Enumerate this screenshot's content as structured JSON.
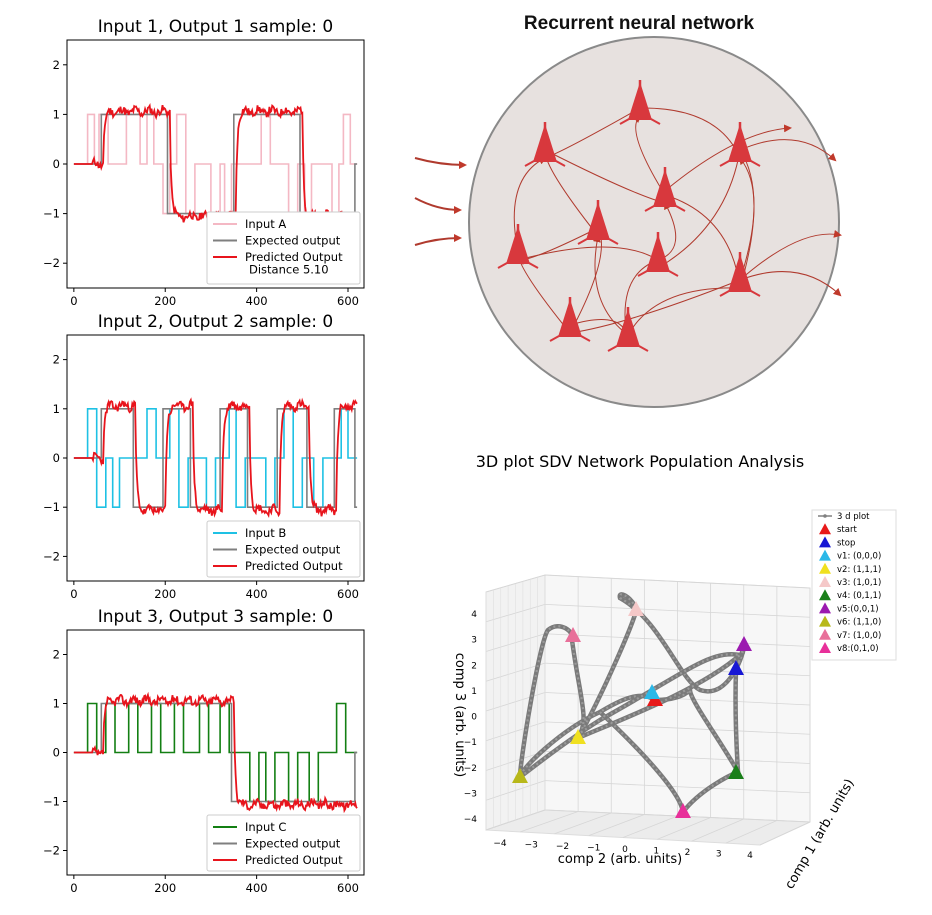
{
  "chart_data": [
    {
      "type": "line",
      "title": "Input 1, Output 1 sample: 0",
      "xlim": [
        -15,
        635
      ],
      "ylim": [
        -2.5,
        2.5
      ],
      "xticks": [
        0,
        200,
        400,
        600
      ],
      "yticks": [
        -2,
        -1,
        0,
        1,
        2
      ],
      "legend": "lower-right",
      "distance_label": "Distance 5.10",
      "input_levels": [
        [
          0,
          0
        ],
        [
          30,
          0
        ],
        [
          30,
          1
        ],
        [
          45,
          1
        ],
        [
          45,
          0
        ],
        [
          55,
          0
        ],
        [
          55,
          1
        ],
        [
          75,
          1
        ],
        [
          75,
          0
        ],
        [
          115,
          0
        ],
        [
          115,
          1
        ],
        [
          145,
          1
        ],
        [
          145,
          0
        ],
        [
          160,
          0
        ],
        [
          160,
          1
        ],
        [
          175,
          1
        ],
        [
          175,
          0
        ],
        [
          195,
          0
        ],
        [
          195,
          -1
        ],
        [
          210,
          -1
        ],
        [
          210,
          0
        ],
        [
          225,
          0
        ],
        [
          225,
          1
        ],
        [
          245,
          1
        ],
        [
          245,
          -1
        ],
        [
          265,
          -1
        ],
        [
          265,
          0
        ],
        [
          300,
          0
        ],
        [
          300,
          -1
        ],
        [
          320,
          -1
        ],
        [
          320,
          0
        ],
        [
          330,
          0
        ],
        [
          330,
          -1
        ],
        [
          345,
          -1
        ],
        [
          345,
          0
        ],
        [
          410,
          0
        ],
        [
          410,
          1
        ],
        [
          430,
          1
        ],
        [
          430,
          0
        ],
        [
          470,
          0
        ],
        [
          470,
          -1
        ],
        [
          490,
          -1
        ],
        [
          490,
          0
        ],
        [
          505,
          0
        ],
        [
          505,
          -1
        ],
        [
          520,
          -1
        ],
        [
          520,
          0
        ],
        [
          565,
          0
        ],
        [
          565,
          -1
        ],
        [
          580,
          -1
        ],
        [
          580,
          0
        ],
        [
          590,
          0
        ],
        [
          590,
          1
        ],
        [
          605,
          1
        ],
        [
          605,
          0
        ],
        [
          620,
          0
        ]
      ],
      "expected_levels": [
        [
          0,
          0
        ],
        [
          60,
          0
        ],
        [
          60,
          1
        ],
        [
          205,
          1
        ],
        [
          205,
          -1
        ],
        [
          350,
          -1
        ],
        [
          350,
          1
        ],
        [
          495,
          1
        ],
        [
          495,
          -1
        ],
        [
          615,
          -1
        ],
        [
          615,
          0
        ],
        [
          620,
          0
        ]
      ],
      "predicted_seed": 11,
      "series": [
        {
          "name": "Input A",
          "color": "#f4b8c4"
        },
        {
          "name": "Expected output",
          "color": "#7f7f7f"
        },
        {
          "name": "Predicted Output",
          "color": "#e8141c"
        }
      ]
    },
    {
      "type": "line",
      "title": "Input 2, Output 2 sample: 0",
      "xlim": [
        -15,
        635
      ],
      "ylim": [
        -2.5,
        2.5
      ],
      "xticks": [
        0,
        200,
        400,
        600
      ],
      "yticks": [
        -2,
        -1,
        0,
        1,
        2
      ],
      "legend": "lower-right",
      "input_levels": [
        [
          0,
          0
        ],
        [
          30,
          0
        ],
        [
          30,
          1
        ],
        [
          50,
          1
        ],
        [
          50,
          -1
        ],
        [
          70,
          -1
        ],
        [
          70,
          0
        ],
        [
          85,
          0
        ],
        [
          85,
          -1
        ],
        [
          100,
          -1
        ],
        [
          100,
          0
        ],
        [
          160,
          0
        ],
        [
          160,
          1
        ],
        [
          180,
          1
        ],
        [
          180,
          0
        ],
        [
          210,
          0
        ],
        [
          210,
          1
        ],
        [
          230,
          1
        ],
        [
          230,
          -1
        ],
        [
          250,
          -1
        ],
        [
          250,
          0
        ],
        [
          290,
          0
        ],
        [
          290,
          -1
        ],
        [
          310,
          -1
        ],
        [
          310,
          0
        ],
        [
          340,
          0
        ],
        [
          340,
          1
        ],
        [
          355,
          1
        ],
        [
          355,
          -1
        ],
        [
          375,
          -1
        ],
        [
          375,
          0
        ],
        [
          420,
          0
        ],
        [
          420,
          -1
        ],
        [
          440,
          -1
        ],
        [
          440,
          0
        ],
        [
          460,
          0
        ],
        [
          460,
          1
        ],
        [
          480,
          1
        ],
        [
          480,
          -1
        ],
        [
          500,
          -1
        ],
        [
          500,
          0
        ],
        [
          525,
          0
        ],
        [
          525,
          -1
        ],
        [
          545,
          -1
        ],
        [
          545,
          0
        ],
        [
          585,
          0
        ],
        [
          585,
          1
        ],
        [
          600,
          1
        ],
        [
          600,
          0
        ],
        [
          620,
          0
        ]
      ],
      "expected_levels": [
        [
          0,
          0
        ],
        [
          60,
          0
        ],
        [
          60,
          1
        ],
        [
          130,
          1
        ],
        [
          130,
          -1
        ],
        [
          195,
          -1
        ],
        [
          195,
          1
        ],
        [
          255,
          1
        ],
        [
          255,
          -1
        ],
        [
          320,
          -1
        ],
        [
          320,
          1
        ],
        [
          380,
          1
        ],
        [
          380,
          -1
        ],
        [
          445,
          -1
        ],
        [
          445,
          1
        ],
        [
          510,
          1
        ],
        [
          510,
          -1
        ],
        [
          570,
          -1
        ],
        [
          570,
          1
        ],
        [
          615,
          1
        ],
        [
          615,
          -1
        ],
        [
          620,
          -1
        ]
      ],
      "predicted_seed": 23,
      "series": [
        {
          "name": "Input B",
          "color": "#1ec1e4"
        },
        {
          "name": "Expected output",
          "color": "#7f7f7f"
        },
        {
          "name": "Predicted Output",
          "color": "#e8141c"
        }
      ]
    },
    {
      "type": "line",
      "title": "Input 3, Output 3 sample: 0",
      "xlim": [
        -15,
        635
      ],
      "ylim": [
        -2.5,
        2.5
      ],
      "xticks": [
        0,
        200,
        400,
        600
      ],
      "yticks": [
        -2,
        -1,
        0,
        1,
        2
      ],
      "legend": "lower-right",
      "input_levels": [
        [
          0,
          0
        ],
        [
          30,
          0
        ],
        [
          30,
          1
        ],
        [
          50,
          1
        ],
        [
          50,
          0
        ],
        [
          70,
          0
        ],
        [
          70,
          1
        ],
        [
          90,
          1
        ],
        [
          90,
          0
        ],
        [
          120,
          0
        ],
        [
          120,
          1
        ],
        [
          140,
          1
        ],
        [
          140,
          0
        ],
        [
          170,
          0
        ],
        [
          170,
          1
        ],
        [
          190,
          1
        ],
        [
          190,
          0
        ],
        [
          220,
          0
        ],
        [
          220,
          1
        ],
        [
          240,
          1
        ],
        [
          240,
          0
        ],
        [
          275,
          0
        ],
        [
          275,
          1
        ],
        [
          295,
          1
        ],
        [
          295,
          0
        ],
        [
          320,
          0
        ],
        [
          320,
          1
        ],
        [
          340,
          1
        ],
        [
          340,
          0
        ],
        [
          360,
          0
        ],
        [
          360,
          0
        ],
        [
          385,
          0
        ],
        [
          385,
          -1
        ],
        [
          405,
          -1
        ],
        [
          405,
          0
        ],
        [
          420,
          0
        ],
        [
          420,
          -1
        ],
        [
          440,
          -1
        ],
        [
          440,
          0
        ],
        [
          470,
          0
        ],
        [
          470,
          -1
        ],
        [
          490,
          -1
        ],
        [
          490,
          0
        ],
        [
          515,
          0
        ],
        [
          515,
          -1
        ],
        [
          535,
          -1
        ],
        [
          535,
          0
        ],
        [
          575,
          0
        ],
        [
          575,
          1
        ],
        [
          595,
          1
        ],
        [
          595,
          0
        ],
        [
          620,
          0
        ]
      ],
      "expected_levels": [
        [
          0,
          0
        ],
        [
          60,
          0
        ],
        [
          60,
          1
        ],
        [
          345,
          1
        ],
        [
          345,
          -1
        ],
        [
          615,
          -1
        ],
        [
          615,
          0
        ],
        [
          620,
          0
        ]
      ],
      "predicted_seed": 37,
      "series": [
        {
          "name": "Input C",
          "color": "#137f13"
        },
        {
          "name": "Expected output",
          "color": "#7f7f7f"
        },
        {
          "name": "Predicted Output",
          "color": "#e8141c"
        }
      ]
    },
    {
      "type": "scatter",
      "title": "3D plot SDV Network Population Analysis",
      "xlabel": "comp 2 (arb. units)",
      "ylabel": "comp 1 (arb. units)",
      "zlabel": "comp 3 (arb. units)",
      "xticks": [
        -4,
        -3,
        -2,
        -1,
        0,
        1,
        2,
        3,
        4
      ],
      "zticks": [
        -4,
        -3,
        -2,
        -1,
        0,
        1,
        2,
        3,
        4
      ],
      "legend": "top-right",
      "legend_entries": [
        {
          "name": "3 d plot",
          "color": "#808080",
          "marker": "line"
        },
        {
          "name": "start",
          "color": "#e81a1a",
          "marker": "triangle"
        },
        {
          "name": "stop",
          "color": "#1717d4",
          "marker": "triangle"
        },
        {
          "name": "v1: (0,0,0)",
          "color": "#2bb8e8",
          "marker": "triangle"
        },
        {
          "name": "v2: (1,1,1)",
          "color": "#f0e020",
          "marker": "triangle"
        },
        {
          "name": "v3: (1,0,1)",
          "color": "#f5c8c8",
          "marker": "triangle"
        },
        {
          "name": "v4: (0,1,1)",
          "color": "#1a7f1a",
          "marker": "triangle"
        },
        {
          "name": "v5:(0,0,1)",
          "color": "#9b1ab0",
          "marker": "triangle"
        },
        {
          "name": "v6: (1,1,0)",
          "color": "#b8b81a",
          "marker": "triangle"
        },
        {
          "name": "v7: (1,0,0)",
          "color": "#e8709a",
          "marker": "triangle"
        },
        {
          "name": "v8:(0,1,0)",
          "color": "#e8309a",
          "marker": "triangle"
        }
      ]
    }
  ],
  "diagram": {
    "title": "Recurrent neural network"
  }
}
